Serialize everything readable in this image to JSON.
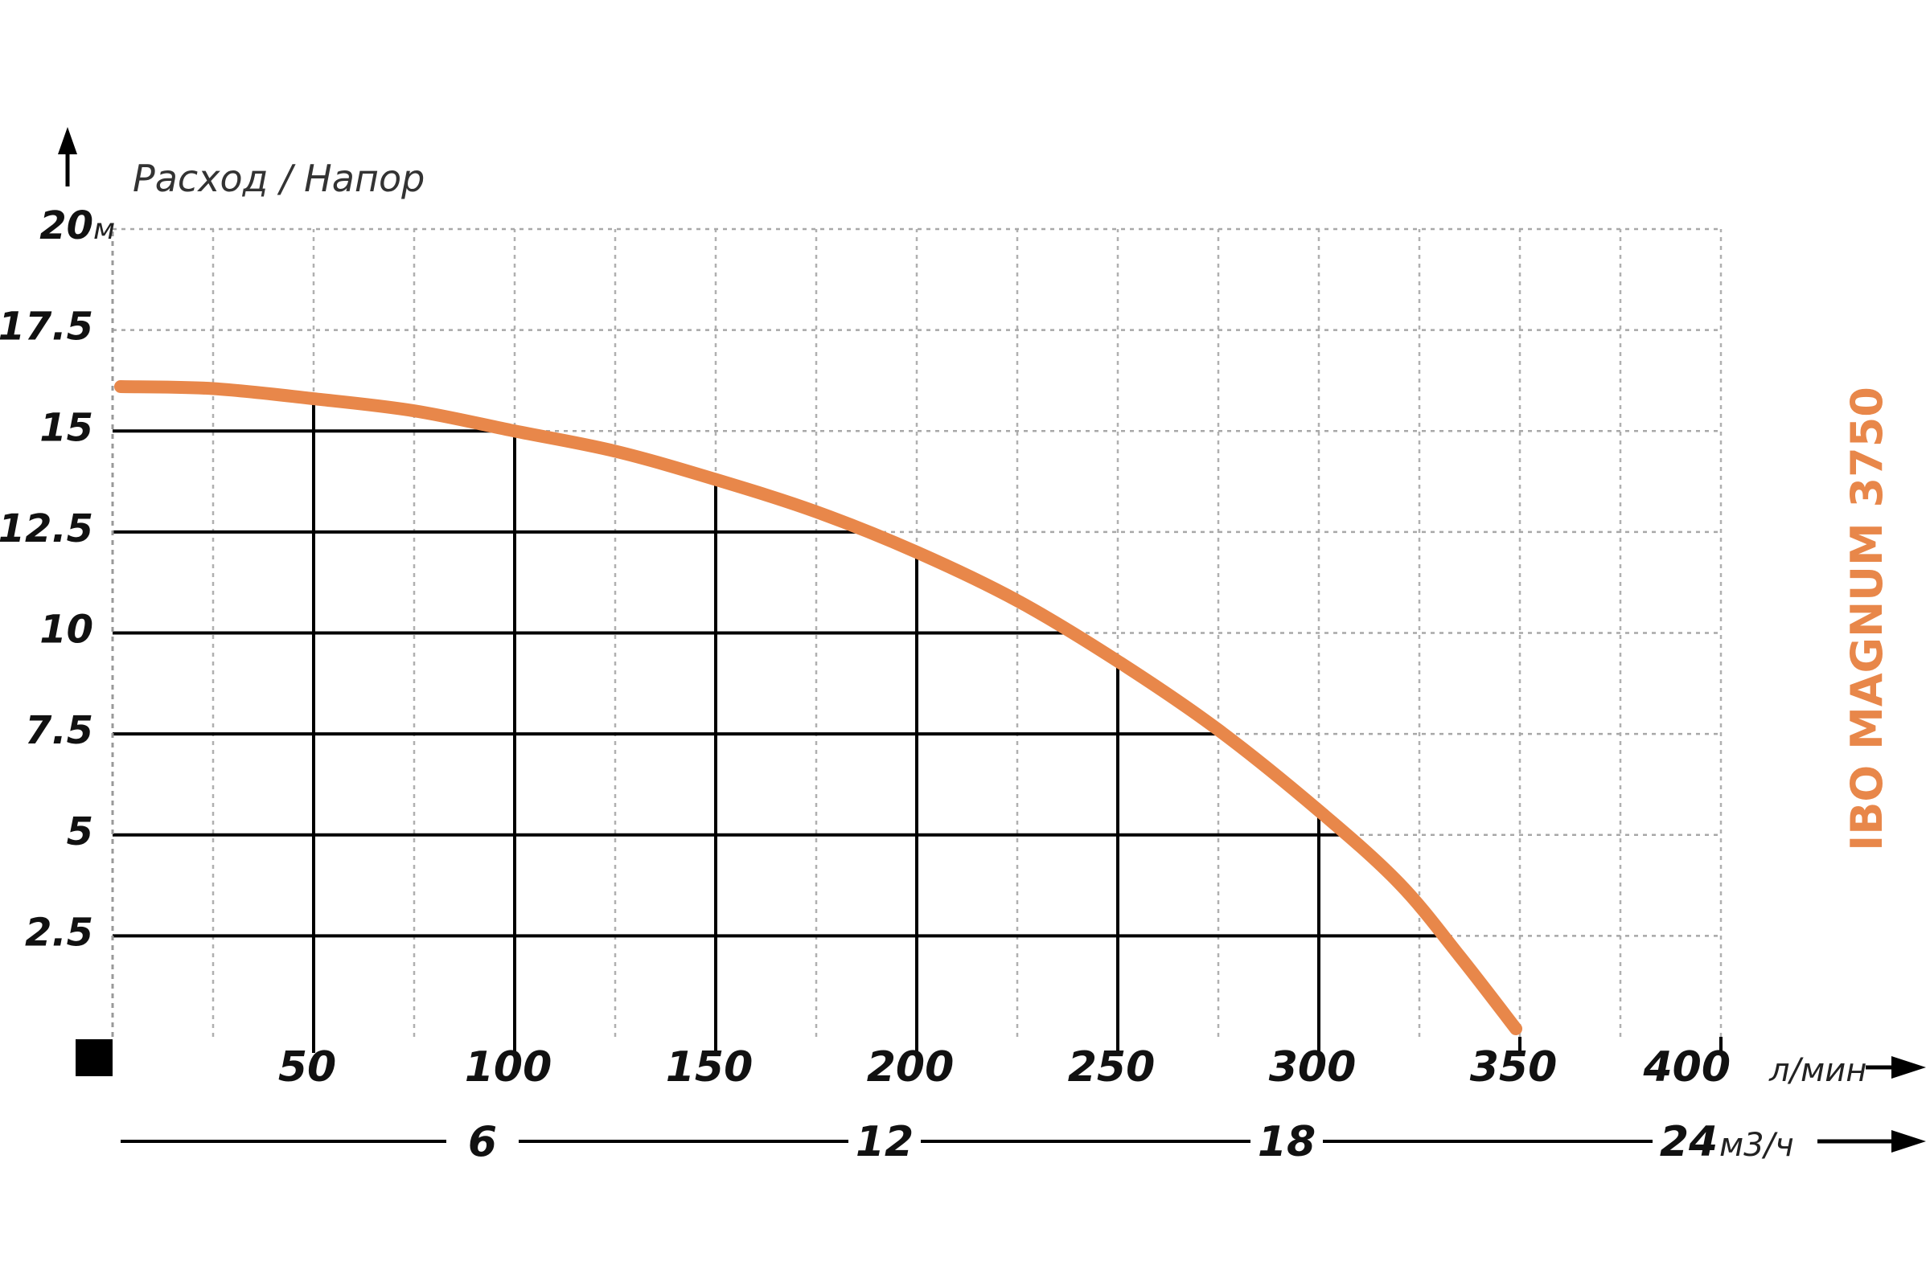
{
  "chart_data": {
    "type": "line",
    "ylabel": "Расход / Напор",
    "y_unit": "м",
    "x_unit": "л/мин",
    "x2_unit": "м3/ч",
    "xlim": [
      0,
      400
    ],
    "ylim": [
      0,
      20
    ],
    "x_ticks": [
      {
        "value": 50,
        "label": "50"
      },
      {
        "value": 100,
        "label": "100"
      },
      {
        "value": 150,
        "label": "150"
      },
      {
        "value": 200,
        "label": "200"
      },
      {
        "value": 250,
        "label": "250"
      },
      {
        "value": 300,
        "label": "300"
      },
      {
        "value": 350,
        "label": "350"
      },
      {
        "value": 400,
        "label": "400"
      }
    ],
    "y_ticks": [
      {
        "value": 2.5,
        "label": "2.5"
      },
      {
        "value": 5,
        "label": "5"
      },
      {
        "value": 7.5,
        "label": "7.5"
      },
      {
        "value": 10,
        "label": "10"
      },
      {
        "value": 12.5,
        "label": "12.5"
      },
      {
        "value": 15,
        "label": "15"
      },
      {
        "value": 17.5,
        "label": "17.5"
      },
      {
        "value": 20,
        "label": "20"
      }
    ],
    "x2_ticks": [
      {
        "value": 6,
        "label": "6"
      },
      {
        "value": 12,
        "label": "12"
      },
      {
        "value": 18,
        "label": "18"
      },
      {
        "value": 24,
        "label": "24"
      }
    ],
    "grid": true,
    "series": [
      {
        "name": "IBO MAGNUM 3750",
        "color": "#e8874a",
        "x": [
          2,
          25,
          50,
          75,
          100,
          125,
          150,
          175,
          200,
          225,
          250,
          275,
          300,
          320,
          335,
          349
        ],
        "y": [
          16.1,
          16.05,
          15.8,
          15.5,
          15.0,
          14.5,
          13.8,
          13.0,
          12.0,
          10.8,
          9.3,
          7.6,
          5.6,
          3.8,
          2.0,
          0.2
        ]
      }
    ]
  }
}
